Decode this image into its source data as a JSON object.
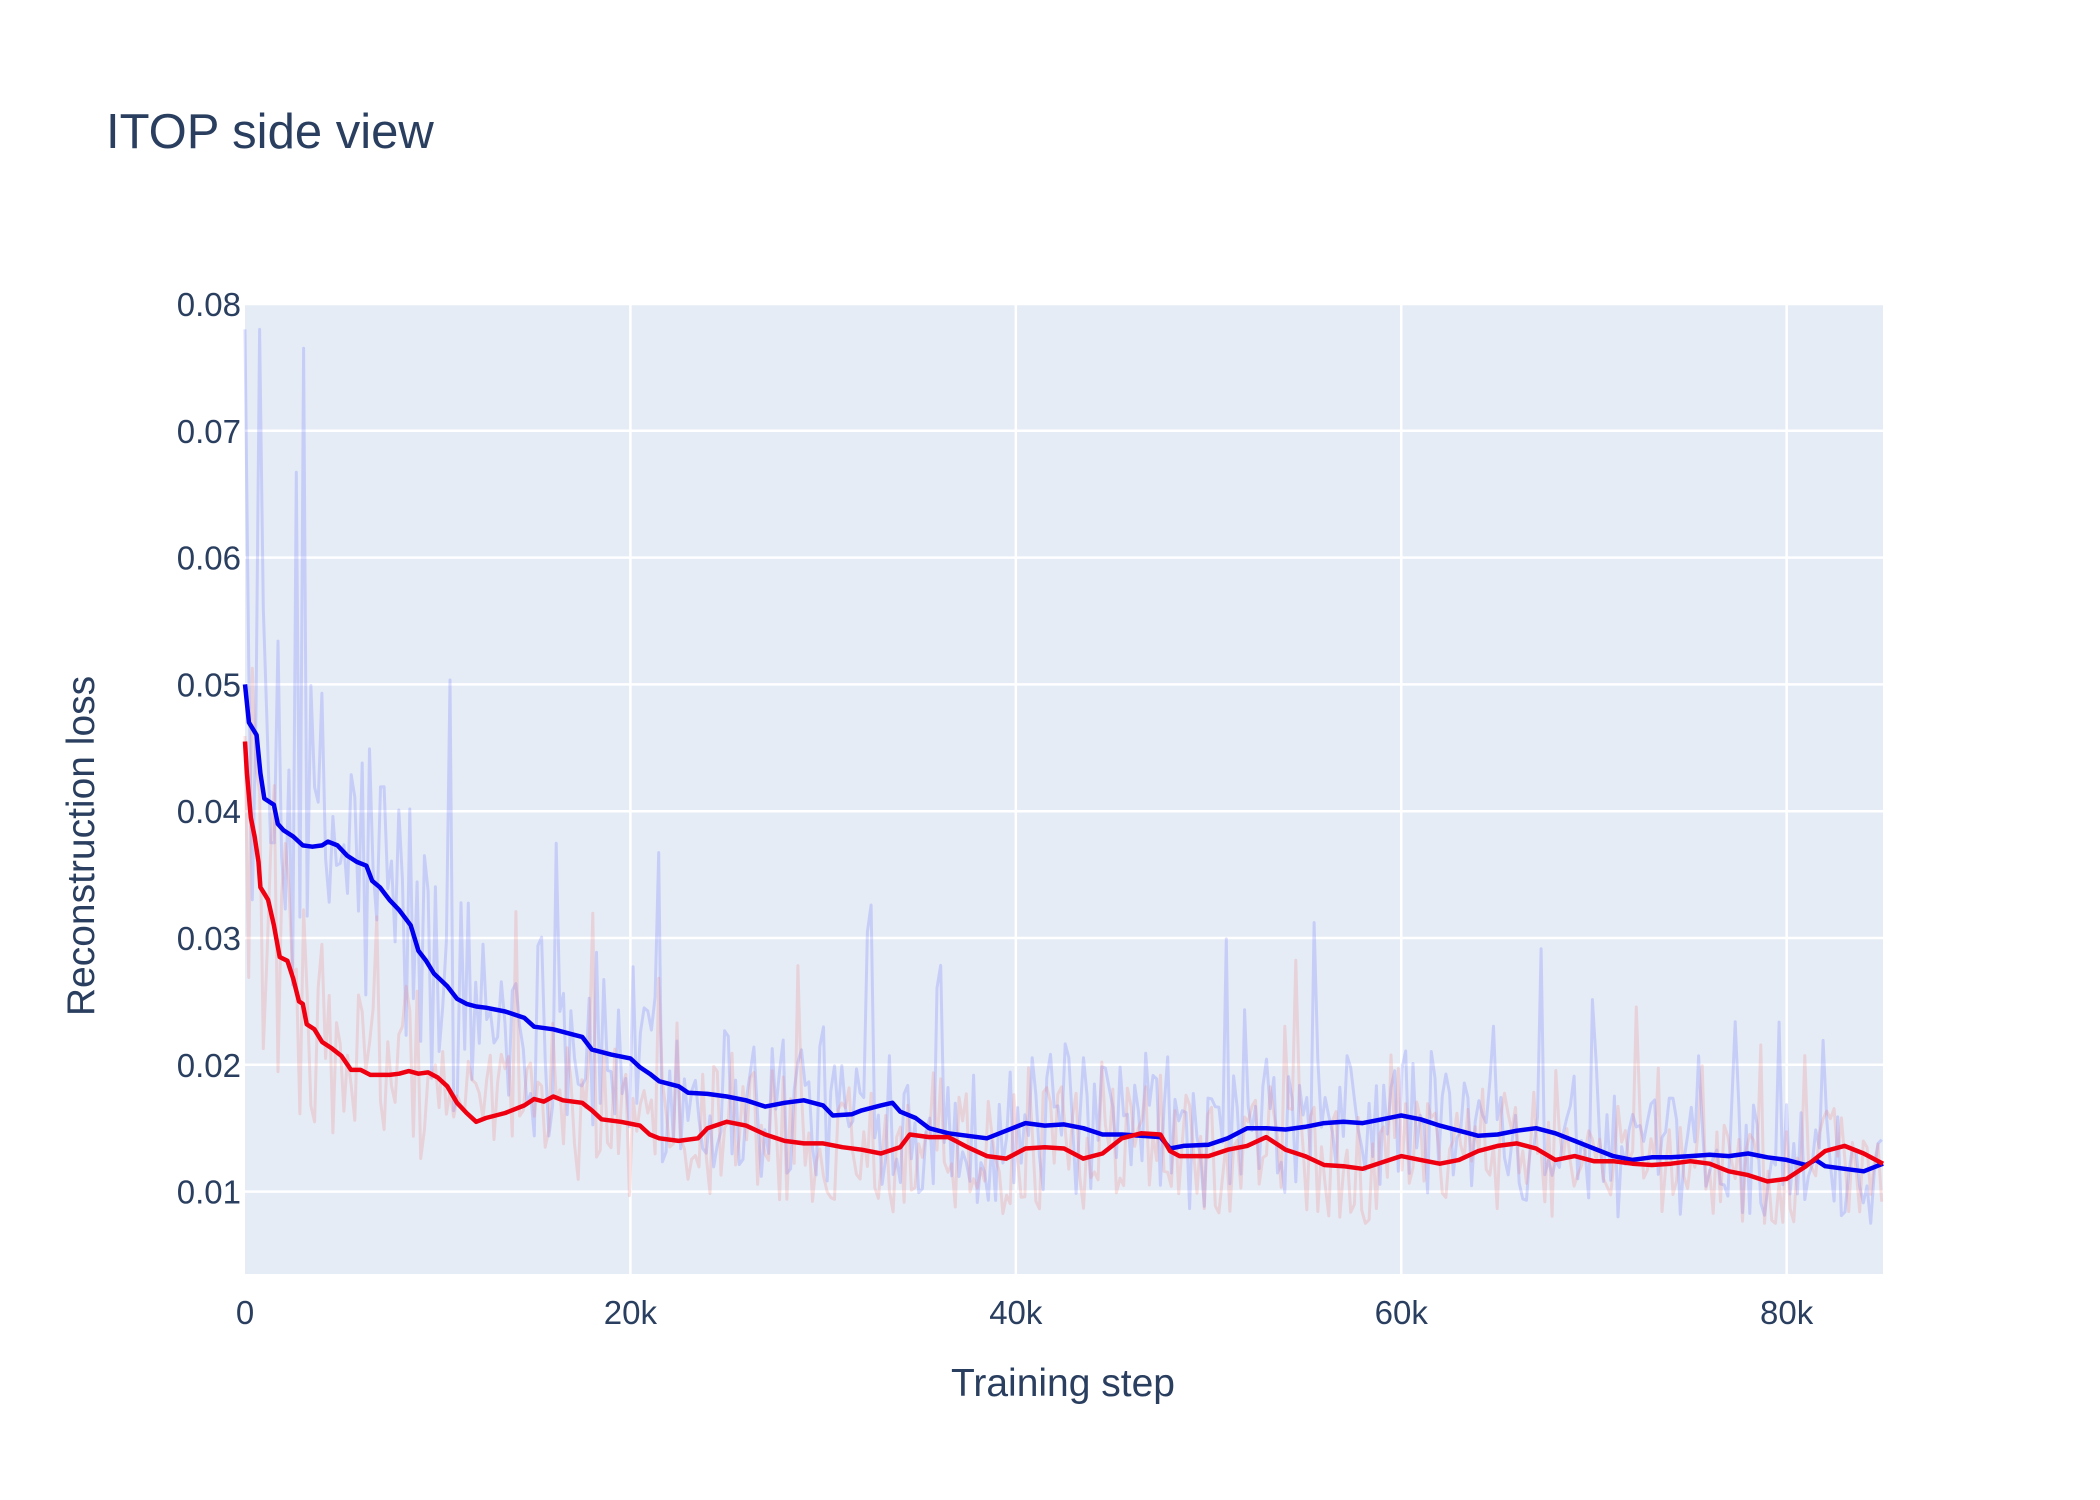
{
  "chart_data": {
    "type": "line",
    "title": "ITOP side view",
    "xlabel": "Training step",
    "ylabel": "Reconstruction loss",
    "xlim": [
      0,
      85000
    ],
    "ylim": [
      0.0035,
      0.08
    ],
    "grid": true,
    "legend": "none",
    "colors": {
      "background": "#e5ecf6",
      "grid": "#ffffff",
      "text": "#2a3f5f"
    },
    "x_ticks": [
      {
        "value": 0,
        "label": "0"
      },
      {
        "value": 20000,
        "label": "20k"
      },
      {
        "value": 40000,
        "label": "40k"
      },
      {
        "value": 60000,
        "label": "60k"
      },
      {
        "value": 80000,
        "label": "80k"
      }
    ],
    "y_ticks": [
      {
        "value": 0.01,
        "label": "0.01"
      },
      {
        "value": 0.02,
        "label": "0.02"
      },
      {
        "value": 0.03,
        "label": "0.03"
      },
      {
        "value": 0.04,
        "label": "0.04"
      },
      {
        "value": 0.05,
        "label": "0.05"
      },
      {
        "value": 0.06,
        "label": "0.06"
      },
      {
        "value": 0.07,
        "label": "0.07"
      },
      {
        "value": 0.08,
        "label": "0.08"
      }
    ],
    "series": [
      {
        "color": "#0000ee",
        "raw_color": "rgba(90,100,255,0.22)",
        "smoothed": [
          [
            0,
            0.05
          ],
          [
            200,
            0.047
          ],
          [
            600,
            0.046
          ],
          [
            800,
            0.043
          ],
          [
            1000,
            0.041
          ],
          [
            1500,
            0.0405
          ],
          [
            1700,
            0.039
          ],
          [
            2000,
            0.0385
          ],
          [
            2500,
            0.038
          ],
          [
            3000,
            0.0373
          ],
          [
            3500,
            0.0372
          ],
          [
            4000,
            0.0373
          ],
          [
            4300,
            0.0376
          ],
          [
            4800,
            0.0373
          ],
          [
            5300,
            0.0365
          ],
          [
            5800,
            0.036
          ],
          [
            6300,
            0.0357
          ],
          [
            6600,
            0.0345
          ],
          [
            7000,
            0.034
          ],
          [
            7500,
            0.033
          ],
          [
            8000,
            0.0322
          ],
          [
            8600,
            0.031
          ],
          [
            9000,
            0.029
          ],
          [
            9400,
            0.0282
          ],
          [
            9800,
            0.0272
          ],
          [
            10500,
            0.0262
          ],
          [
            11000,
            0.0252
          ],
          [
            11500,
            0.0248
          ],
          [
            12000,
            0.0246
          ],
          [
            12500,
            0.0245
          ],
          [
            13500,
            0.0242
          ],
          [
            14500,
            0.0237
          ],
          [
            15000,
            0.023
          ],
          [
            16000,
            0.0228
          ],
          [
            17000,
            0.0224
          ],
          [
            17500,
            0.0222
          ],
          [
            18000,
            0.0212
          ],
          [
            19000,
            0.0208
          ],
          [
            20000,
            0.0205
          ],
          [
            20500,
            0.0198
          ],
          [
            21000,
            0.0193
          ],
          [
            21500,
            0.0187
          ],
          [
            22500,
            0.0183
          ],
          [
            23000,
            0.0178
          ],
          [
            24000,
            0.0177
          ],
          [
            25000,
            0.0175
          ],
          [
            26000,
            0.0172
          ],
          [
            27000,
            0.0167
          ],
          [
            28000,
            0.017
          ],
          [
            29000,
            0.0172
          ],
          [
            30000,
            0.0168
          ],
          [
            30500,
            0.016
          ],
          [
            31500,
            0.0161
          ],
          [
            32000,
            0.0164
          ],
          [
            33000,
            0.0168
          ],
          [
            33600,
            0.017
          ],
          [
            34000,
            0.0163
          ],
          [
            34800,
            0.0158
          ],
          [
            35500,
            0.015
          ],
          [
            36500,
            0.0146
          ],
          [
            37500,
            0.0144
          ],
          [
            38500,
            0.0142
          ],
          [
            39500,
            0.0148
          ],
          [
            40500,
            0.0154
          ],
          [
            41500,
            0.0152
          ],
          [
            42500,
            0.0153
          ],
          [
            43500,
            0.015
          ],
          [
            44500,
            0.0145
          ],
          [
            45500,
            0.0145
          ],
          [
            46500,
            0.0144
          ],
          [
            47500,
            0.0143
          ],
          [
            48000,
            0.0134
          ],
          [
            48700,
            0.0136
          ],
          [
            50000,
            0.0137
          ],
          [
            51000,
            0.0142
          ],
          [
            52000,
            0.015
          ],
          [
            53000,
            0.015
          ],
          [
            54000,
            0.0149
          ],
          [
            55000,
            0.0151
          ],
          [
            56000,
            0.0154
          ],
          [
            57000,
            0.0155
          ],
          [
            58000,
            0.0154
          ],
          [
            59000,
            0.0157
          ],
          [
            60000,
            0.016
          ],
          [
            61000,
            0.0157
          ],
          [
            62000,
            0.0152
          ],
          [
            63000,
            0.0148
          ],
          [
            64000,
            0.0144
          ],
          [
            65000,
            0.0145
          ],
          [
            66000,
            0.0148
          ],
          [
            67000,
            0.015
          ],
          [
            68000,
            0.0146
          ],
          [
            69000,
            0.014
          ],
          [
            70000,
            0.0134
          ],
          [
            71000,
            0.0128
          ],
          [
            72000,
            0.0125
          ],
          [
            73000,
            0.0127
          ],
          [
            74000,
            0.0127
          ],
          [
            75000,
            0.0128
          ],
          [
            76000,
            0.0129
          ],
          [
            77000,
            0.0128
          ],
          [
            78000,
            0.013
          ],
          [
            79000,
            0.0127
          ],
          [
            80000,
            0.0125
          ],
          [
            81000,
            0.0121
          ],
          [
            81500,
            0.0125
          ],
          [
            82000,
            0.012
          ],
          [
            83000,
            0.0118
          ],
          [
            84000,
            0.0116
          ],
          [
            85000,
            0.0122
          ]
        ]
      },
      {
        "color": "#ee0011",
        "raw_color": "rgba(240,120,120,0.22)",
        "smoothed": [
          [
            0,
            0.0455
          ],
          [
            100,
            0.043
          ],
          [
            300,
            0.0395
          ],
          [
            500,
            0.038
          ],
          [
            700,
            0.036
          ],
          [
            800,
            0.034
          ],
          [
            1000,
            0.0335
          ],
          [
            1200,
            0.033
          ],
          [
            1500,
            0.031
          ],
          [
            1800,
            0.0285
          ],
          [
            2200,
            0.0282
          ],
          [
            2500,
            0.0268
          ],
          [
            2800,
            0.025
          ],
          [
            3000,
            0.0248
          ],
          [
            3200,
            0.0232
          ],
          [
            3600,
            0.0228
          ],
          [
            4000,
            0.0218
          ],
          [
            4500,
            0.0213
          ],
          [
            5000,
            0.0207
          ],
          [
            5500,
            0.0196
          ],
          [
            6000,
            0.0196
          ],
          [
            6500,
            0.0192
          ],
          [
            7500,
            0.0192
          ],
          [
            8000,
            0.0193
          ],
          [
            8500,
            0.0195
          ],
          [
            9000,
            0.0193
          ],
          [
            9500,
            0.0194
          ],
          [
            10000,
            0.019
          ],
          [
            10500,
            0.0183
          ],
          [
            11000,
            0.017
          ],
          [
            11500,
            0.0162
          ],
          [
            12000,
            0.0155
          ],
          [
            12500,
            0.0158
          ],
          [
            13500,
            0.0162
          ],
          [
            14500,
            0.0168
          ],
          [
            15000,
            0.0173
          ],
          [
            15500,
            0.0171
          ],
          [
            16000,
            0.0175
          ],
          [
            16500,
            0.0172
          ],
          [
            17500,
            0.017
          ],
          [
            18000,
            0.0164
          ],
          [
            18500,
            0.0157
          ],
          [
            19500,
            0.0155
          ],
          [
            20500,
            0.0152
          ],
          [
            21000,
            0.0145
          ],
          [
            21500,
            0.0142
          ],
          [
            22500,
            0.014
          ],
          [
            23500,
            0.0142
          ],
          [
            24000,
            0.015
          ],
          [
            25000,
            0.0155
          ],
          [
            26000,
            0.0152
          ],
          [
            27000,
            0.0145
          ],
          [
            28000,
            0.014
          ],
          [
            29000,
            0.0138
          ],
          [
            30000,
            0.0138
          ],
          [
            31000,
            0.0135
          ],
          [
            32000,
            0.0133
          ],
          [
            33000,
            0.013
          ],
          [
            34000,
            0.0135
          ],
          [
            34500,
            0.0145
          ],
          [
            35500,
            0.0143
          ],
          [
            36500,
            0.0143
          ],
          [
            37500,
            0.0135
          ],
          [
            38500,
            0.0128
          ],
          [
            39500,
            0.0126
          ],
          [
            40500,
            0.0134
          ],
          [
            41500,
            0.0135
          ],
          [
            42500,
            0.0134
          ],
          [
            43500,
            0.0126
          ],
          [
            44500,
            0.013
          ],
          [
            45500,
            0.0142
          ],
          [
            46500,
            0.0146
          ],
          [
            47500,
            0.0145
          ],
          [
            48000,
            0.0132
          ],
          [
            48500,
            0.0128
          ],
          [
            50000,
            0.0128
          ],
          [
            51000,
            0.0133
          ],
          [
            52000,
            0.0136
          ],
          [
            53000,
            0.0143
          ],
          [
            54000,
            0.0133
          ],
          [
            55000,
            0.0128
          ],
          [
            56000,
            0.0121
          ],
          [
            57000,
            0.012
          ],
          [
            58000,
            0.0118
          ],
          [
            59000,
            0.0123
          ],
          [
            60000,
            0.0128
          ],
          [
            61000,
            0.0125
          ],
          [
            62000,
            0.0122
          ],
          [
            63000,
            0.0125
          ],
          [
            64000,
            0.0132
          ],
          [
            65000,
            0.0136
          ],
          [
            66000,
            0.0138
          ],
          [
            67000,
            0.0134
          ],
          [
            68000,
            0.0125
          ],
          [
            69000,
            0.0128
          ],
          [
            70000,
            0.0124
          ],
          [
            71000,
            0.0124
          ],
          [
            72000,
            0.0122
          ],
          [
            73000,
            0.0121
          ],
          [
            74000,
            0.0122
          ],
          [
            75000,
            0.0124
          ],
          [
            76000,
            0.0122
          ],
          [
            77000,
            0.0116
          ],
          [
            78000,
            0.0113
          ],
          [
            79000,
            0.0108
          ],
          [
            80000,
            0.011
          ],
          [
            81000,
            0.012
          ],
          [
            82000,
            0.0132
          ],
          [
            83000,
            0.0136
          ],
          [
            84000,
            0.013
          ],
          [
            85000,
            0.0122
          ]
        ]
      }
    ]
  }
}
